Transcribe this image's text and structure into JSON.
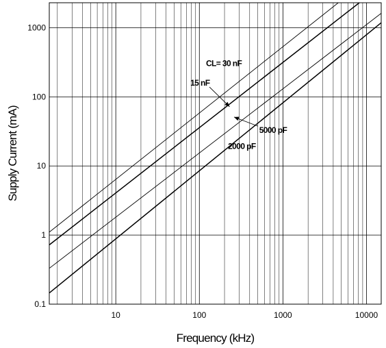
{
  "chart_data": {
    "type": "line",
    "xlabel": "Frequency (kHz)",
    "ylabel": "Supply Current (mA)",
    "x_scale": "log",
    "y_scale": "log",
    "xlim": [
      1.6,
      15000
    ],
    "ylim": [
      0.1,
      2300
    ],
    "x_ticks": [
      {
        "value": 10,
        "label": "10"
      },
      {
        "value": 100,
        "label": "100"
      },
      {
        "value": 1000,
        "label": "1000"
      },
      {
        "value": 10000,
        "label": "10000"
      }
    ],
    "y_ticks": [
      {
        "value": 0.1,
        "label": "0.1"
      },
      {
        "value": 1,
        "label": "1"
      },
      {
        "value": 10,
        "label": "10"
      },
      {
        "value": 100,
        "label": "100"
      },
      {
        "value": 1000,
        "label": "1000"
      }
    ],
    "grid": true,
    "series": [
      {
        "name": "CL= 30 nF",
        "x": [
          1.6,
          4600
        ],
        "y": [
          1.1,
          2300
        ]
      },
      {
        "name": "15 nF",
        "x": [
          1.6,
          8200
        ],
        "y": [
          0.72,
          2300
        ]
      },
      {
        "name": "5000 pF",
        "x": [
          1.6,
          15000
        ],
        "y": [
          0.33,
          1620
        ]
      },
      {
        "name": "2000 pF",
        "x": [
          1.6,
          15000
        ],
        "y": [
          0.145,
          1180
        ]
      }
    ],
    "annotations": [
      {
        "text": "CL= 30 nF",
        "x": 120,
        "y": 280,
        "arrow": false
      },
      {
        "text": "15 nF",
        "x": 78,
        "y": 145,
        "arrow": true,
        "arrow_to": [
          230,
          72
        ]
      },
      {
        "text": "5000 pF",
        "x": 520,
        "y": 30,
        "arrow": true,
        "arrow_to": [
          260,
          51
        ]
      },
      {
        "text": "2000 pF",
        "x": 220,
        "y": 17.5,
        "arrow": false
      }
    ]
  }
}
